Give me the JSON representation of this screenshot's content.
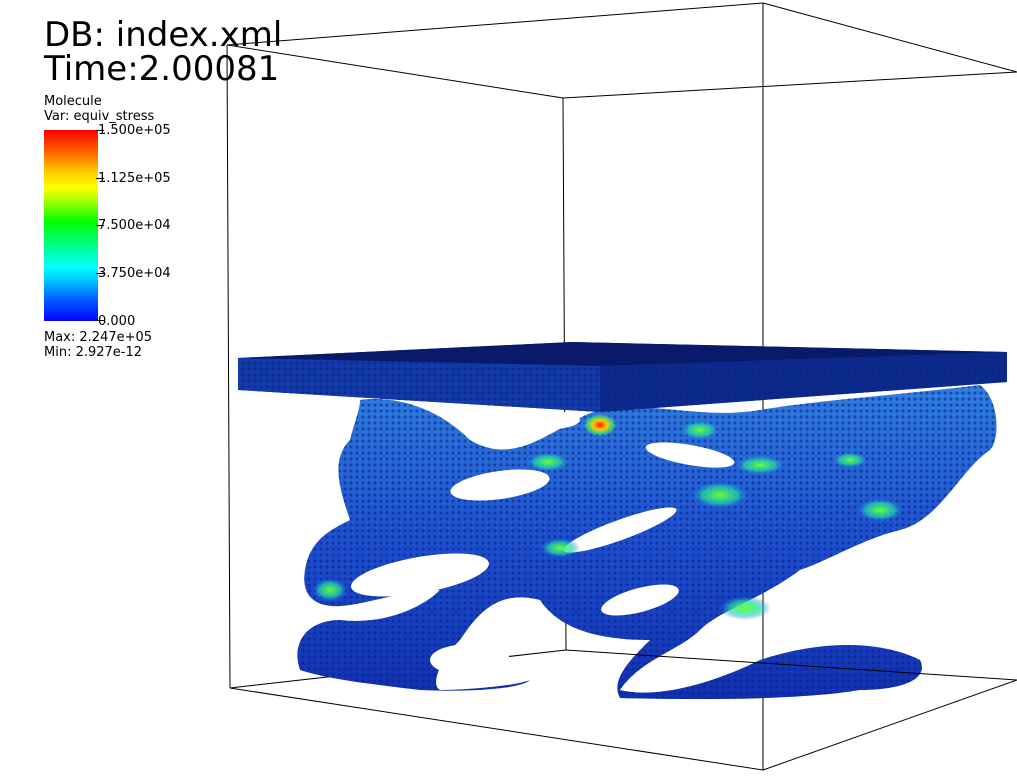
{
  "header": {
    "db_label": "DB: index.xml",
    "time_label": "Time:2.00081"
  },
  "legend": {
    "title": "Molecule",
    "variable": "Var: equiv_stress",
    "ticks": [
      "1.500e+05",
      "1.125e+05",
      "7.500e+04",
      "3.750e+04",
      "0.000"
    ],
    "max": "Max:  2.247e+05",
    "min": "Min:  2.927e-12",
    "colormap": [
      "#0000ff",
      "#00ffff",
      "#00ff00",
      "#ffff00",
      "#ff0000"
    ]
  },
  "scene": {
    "plate_color": "#0b1f8a",
    "structure_color": "#1a3fd0",
    "bounding_box_color": "#000000"
  }
}
